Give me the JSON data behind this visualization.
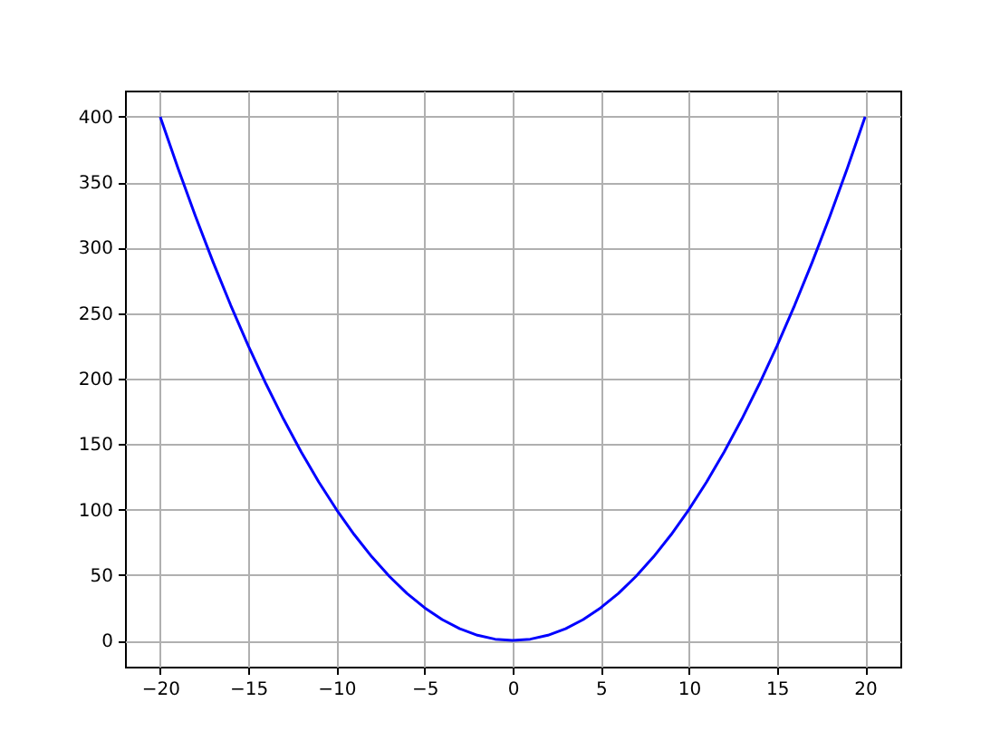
{
  "chart_data": {
    "type": "line",
    "x": [
      -20,
      -19,
      -18,
      -17,
      -16,
      -15,
      -14,
      -13,
      -12,
      -11,
      -10,
      -9,
      -8,
      -7,
      -6,
      -5,
      -4,
      -3,
      -2,
      -1,
      0,
      1,
      2,
      3,
      4,
      5,
      6,
      7,
      8,
      9,
      10,
      11,
      12,
      13,
      14,
      15,
      16,
      17,
      18,
      19,
      20
    ],
    "series": [
      {
        "color": "#0000ff",
        "values": [
          400,
          361,
          324,
          289,
          256,
          225,
          196,
          169,
          144,
          121,
          100,
          81,
          64,
          49,
          36,
          25,
          16,
          9,
          4,
          1,
          0,
          1,
          4,
          9,
          16,
          25,
          36,
          49,
          64,
          81,
          100,
          121,
          144,
          169,
          196,
          225,
          256,
          289,
          324,
          361,
          400
        ]
      }
    ],
    "xlim": [
      -22,
      22
    ],
    "ylim": [
      -20,
      420
    ],
    "xticks": [
      -20,
      -15,
      -10,
      -5,
      0,
      5,
      10,
      15,
      20
    ],
    "yticks": [
      0,
      50,
      100,
      150,
      200,
      250,
      300,
      350,
      400
    ],
    "grid": true
  }
}
